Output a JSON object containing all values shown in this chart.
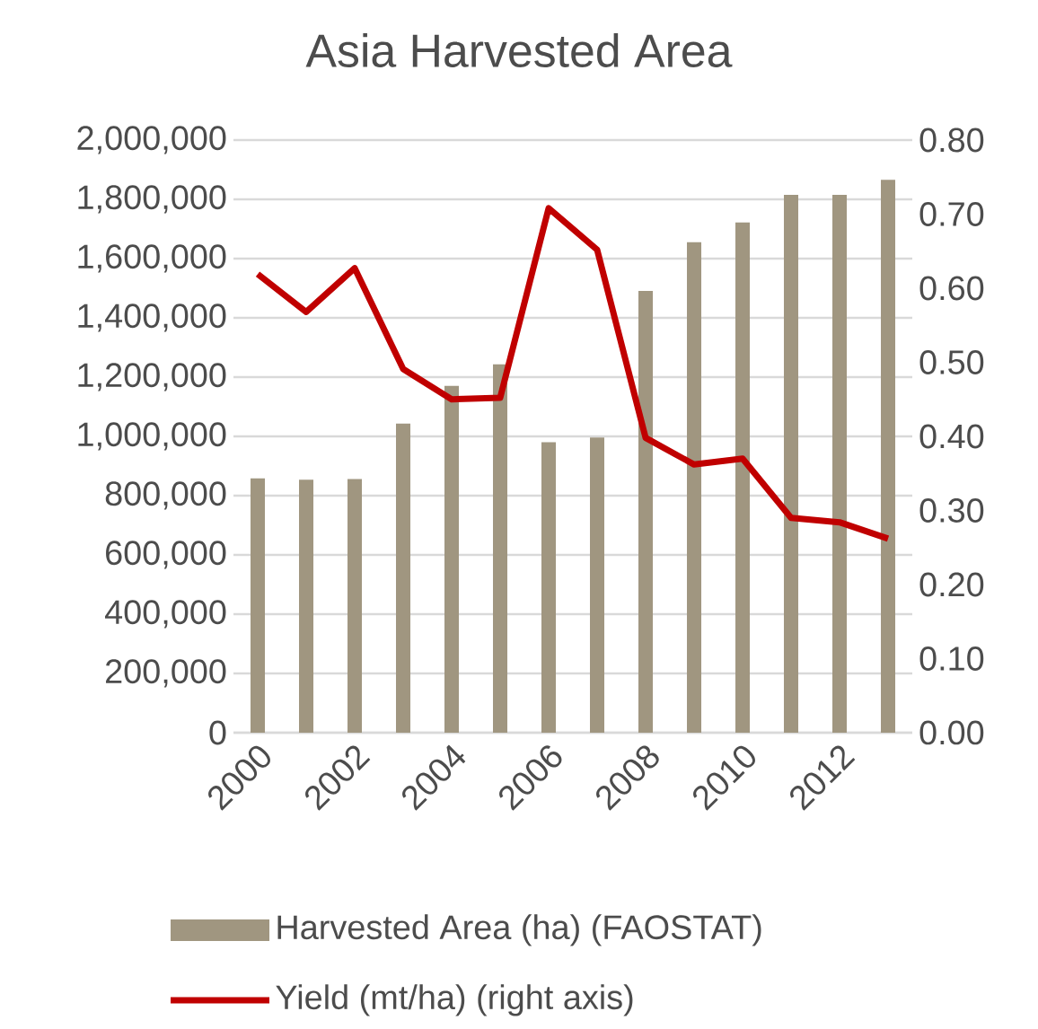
{
  "chart_data": {
    "type": "bar",
    "title": "Asia Harvested Area",
    "categories": [
      "2000",
      null,
      "2002",
      null,
      "2004",
      null,
      "2006",
      null,
      "2008",
      null,
      "2010",
      null,
      "2012",
      null
    ],
    "series": [
      {
        "name": "Harvested Area (ha) (FAOSTAT)",
        "color": "#a09680",
        "values": [
          858000,
          854000,
          856000,
          1043000,
          1170000,
          1243000,
          980000,
          996000,
          1491000,
          1655000,
          1722000,
          1815000,
          1815000,
          1866000
        ]
      },
      {
        "name": "Yield (mt/ha) (right axis)",
        "type": "line",
        "axis": "y2",
        "color": "#c00000",
        "values": [
          0.619,
          0.568,
          0.627,
          0.491,
          0.45,
          0.452,
          0.708,
          0.652,
          0.398,
          0.362,
          0.37,
          0.29,
          0.284,
          0.262
        ]
      }
    ],
    "ylim": [
      0,
      2000000
    ],
    "yticks": [
      0,
      {
        "value": 200000,
        "label": "200,000"
      },
      {
        "value": 400000,
        "label": "400,000"
      },
      {
        "value": 600000,
        "label": "600,000"
      },
      {
        "value": 800000,
        "label": "800,000"
      },
      {
        "value": 1000000,
        "label": "1,000,000"
      },
      {
        "value": 1200000,
        "label": "1,200,000"
      },
      {
        "value": 1400000,
        "label": "1,400,000"
      },
      {
        "value": 1600000,
        "label": "1,600,000"
      },
      {
        "value": 1800000,
        "label": "1,800,000"
      },
      {
        "value": 2000000,
        "label": "2,000,000"
      }
    ],
    "y2lim": [
      0,
      0.8
    ],
    "y2ticks": [
      {
        "value": 0,
        "label": "0.00"
      },
      {
        "value": 0.1,
        "label": "0.10"
      },
      {
        "value": 0.2,
        "label": "0.20"
      },
      {
        "value": 0.3,
        "label": "0.30"
      },
      {
        "value": 0.4,
        "label": "0.40"
      },
      {
        "value": 0.5,
        "label": "0.50"
      },
      {
        "value": 0.6,
        "label": "0.60"
      },
      {
        "value": 0.7,
        "label": "0.70"
      },
      {
        "value": 0.8,
        "label": "0.80"
      }
    ],
    "grid": "y",
    "legend": "bottom",
    "marker": "none",
    "line_style": "solid"
  }
}
